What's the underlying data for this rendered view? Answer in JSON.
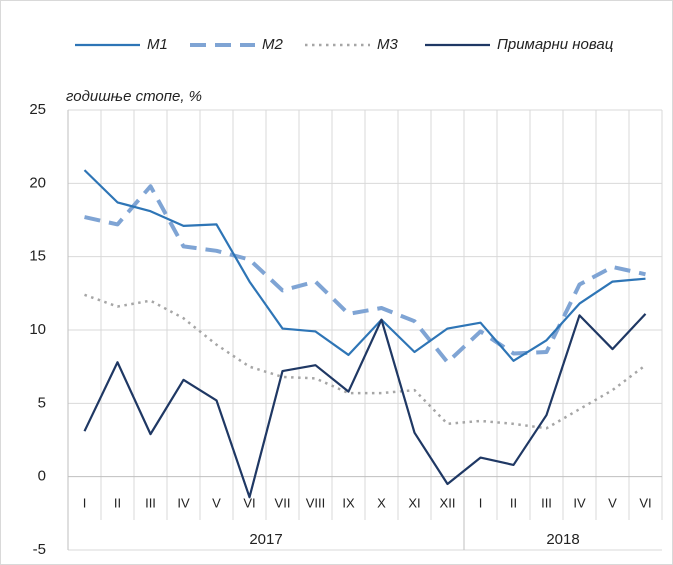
{
  "chart_data": {
    "type": "line",
    "y_axis_label": "годишње стопе, %",
    "groups": [
      {
        "label": "2017",
        "categories": [
          "I",
          "II",
          "III",
          "IV",
          "V",
          "VI",
          "VII",
          "VIII",
          "IX",
          "X",
          "XI",
          "XII"
        ]
      },
      {
        "label": "2018",
        "categories": [
          "I",
          "II",
          "III",
          "IV",
          "V",
          "VI"
        ]
      }
    ],
    "series": [
      {
        "name": "M1",
        "color": "#2e75b6",
        "style": "solid",
        "values": [
          20.9,
          18.7,
          18.1,
          17.1,
          17.2,
          13.3,
          10.1,
          9.9,
          8.3,
          10.7,
          8.5,
          10.1,
          10.5,
          7.9,
          9.3,
          11.8,
          13.3,
          13.5
        ]
      },
      {
        "name": "M2",
        "color": "#7fa4d4",
        "style": "dashed",
        "values": [
          17.7,
          17.2,
          19.8,
          15.7,
          15.4,
          14.8,
          12.7,
          13.3,
          11.1,
          11.5,
          10.6,
          7.8,
          9.9,
          8.4,
          8.5,
          13.1,
          14.3,
          13.8
        ]
      },
      {
        "name": "M3",
        "color": "#a6a6a6",
        "style": "dotted",
        "values": [
          12.4,
          11.6,
          12.0,
          10.8,
          9.0,
          7.5,
          6.8,
          6.7,
          5.7,
          5.7,
          5.9,
          3.6,
          3.8,
          3.6,
          3.3,
          4.6,
          5.9,
          7.6
        ]
      },
      {
        "name": "Примарни новац",
        "color": "#1f3864",
        "style": "solid",
        "values": [
          3.1,
          7.8,
          2.9,
          6.6,
          5.2,
          -1.4,
          7.2,
          7.6,
          5.8,
          10.7,
          3.0,
          -0.5,
          1.3,
          0.8,
          4.2,
          11.0,
          8.7,
          11.1
        ]
      }
    ],
    "ylim": [
      -5,
      25
    ],
    "yticks": [
      -5,
      0,
      5,
      10,
      15,
      20,
      25
    ],
    "grid": true
  }
}
